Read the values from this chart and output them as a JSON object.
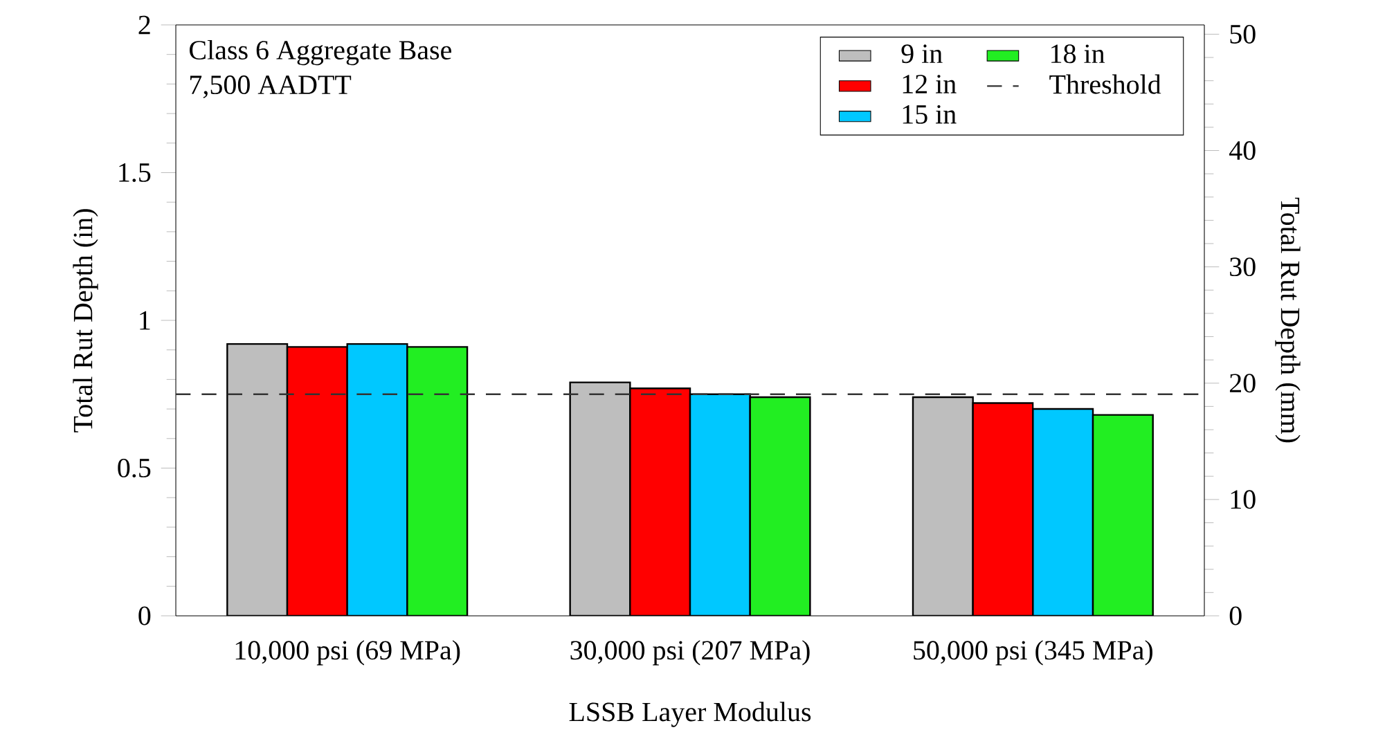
{
  "chart_data": {
    "type": "bar",
    "categories": [
      "10,000 psi (69 MPa)",
      "30,000 psi (207 MPa)",
      "50,000 psi (345 MPa)"
    ],
    "series": [
      {
        "name": "9 in",
        "color": "#bebebe",
        "values": [
          0.92,
          0.79,
          0.74
        ]
      },
      {
        "name": "12 in",
        "color": "#ff0000",
        "values": [
          0.91,
          0.77,
          0.72
        ]
      },
      {
        "name": "15 in",
        "color": "#00c8ff",
        "values": [
          0.92,
          0.75,
          0.7
        ]
      },
      {
        "name": "18 in",
        "color": "#22ee22",
        "values": [
          0.91,
          0.74,
          0.68
        ]
      }
    ],
    "xlabel": "LSSB Layer Modulus",
    "ylabel": "Total Rut Depth (in)",
    "y2label": "Total Rut Depth (mm)",
    "ylim": [
      0,
      2
    ],
    "yticks": [
      0,
      0.5,
      1,
      1.5,
      2
    ],
    "y2lim": [
      0,
      50.8
    ],
    "y2ticks": [
      0,
      10,
      20,
      30,
      40,
      50
    ],
    "ref_lines": [
      {
        "axis": "y",
        "value": 0.75,
        "label": "Threshold",
        "color": "#333333",
        "line_style": "dashed"
      }
    ],
    "annotations": [
      "Class 6 Aggregate Base",
      "7,500 AADTT"
    ],
    "legend": "top right",
    "grid": false
  }
}
